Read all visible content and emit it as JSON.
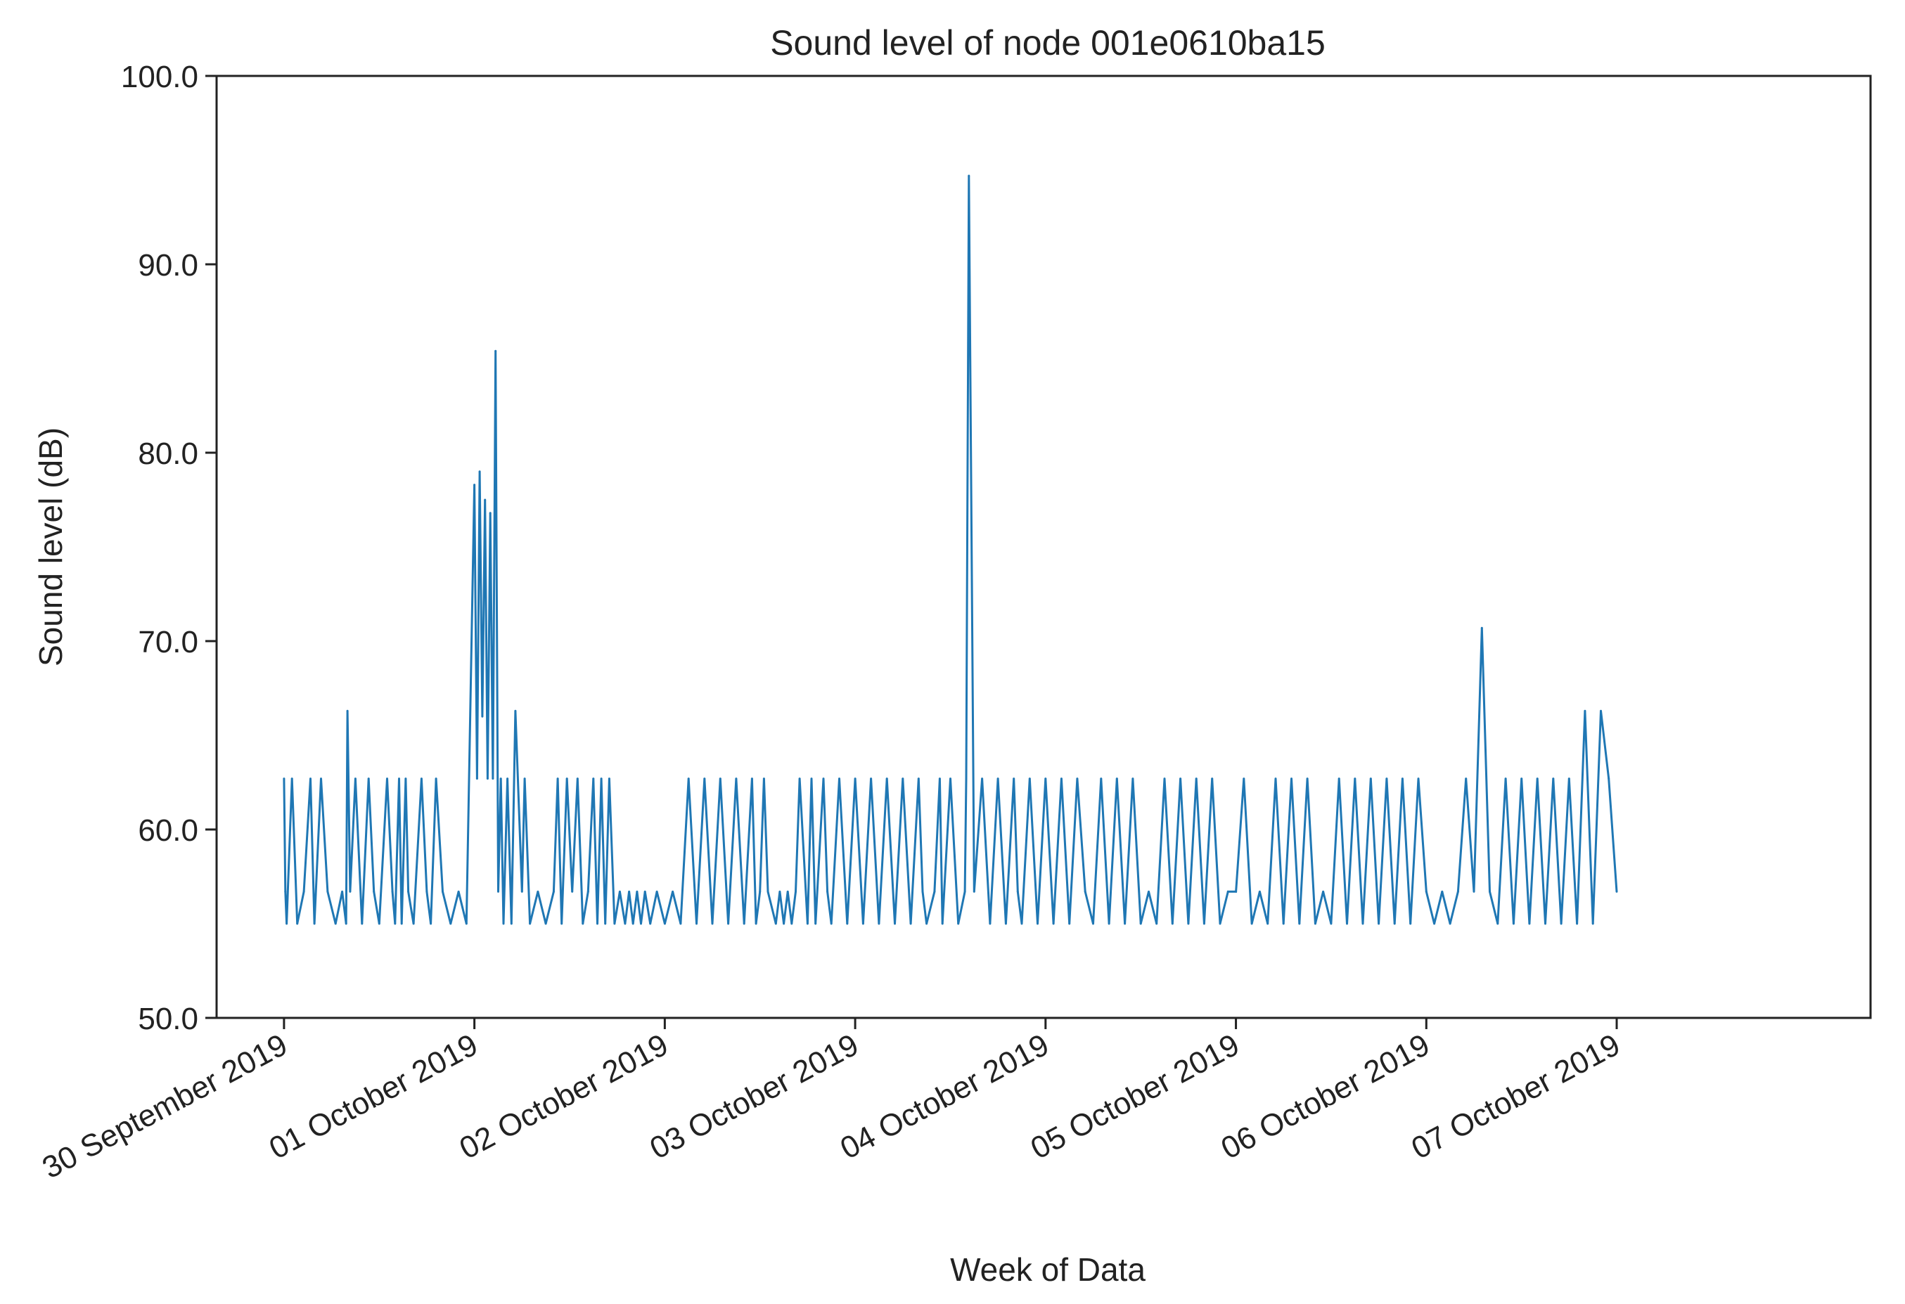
{
  "chart_data": {
    "type": "line",
    "title": "Sound level of node 001e0610ba15",
    "xlabel": "Week of Data",
    "ylabel": "Sound level (dB)",
    "ylim": [
      50,
      100
    ],
    "yticks": [
      {
        "value": 100,
        "label": "100.0"
      },
      {
        "value": 90,
        "label": "90.0"
      },
      {
        "value": 80,
        "label": "80.0"
      },
      {
        "value": 70,
        "label": "70.0"
      },
      {
        "value": 60,
        "label": "60.0"
      },
      {
        "value": 50,
        "label": "50.0"
      }
    ],
    "xlim": [
      "2019-09-29T15:30",
      "2019-10-08T08:00"
    ],
    "xticks": [
      {
        "value": "2019-09-30T00:00",
        "label": "30 September 2019"
      },
      {
        "value": "2019-10-01T00:00",
        "label": "01 October 2019"
      },
      {
        "value": "2019-10-02T00:00",
        "label": "02 October 2019"
      },
      {
        "value": "2019-10-03T00:00",
        "label": "03 October 2019"
      },
      {
        "value": "2019-10-04T00:00",
        "label": "04 October 2019"
      },
      {
        "value": "2019-10-05T00:00",
        "label": "05 October 2019"
      },
      {
        "value": "2019-10-06T00:00",
        "label": "06 October 2019"
      },
      {
        "value": "2019-10-07T00:00",
        "label": "07 October 2019"
      }
    ],
    "grid": false,
    "series": [
      {
        "color": "#1f77b4",
        "x": [
          "2019-09-30T00:00",
          "2019-09-30T00:10",
          "2019-09-30T00:20",
          "2019-09-30T01:00",
          "2019-09-30T01:40",
          "2019-09-30T02:30",
          "2019-09-30T03:20",
          "2019-09-30T03:50",
          "2019-09-30T04:40",
          "2019-09-30T05:30",
          "2019-09-30T06:30",
          "2019-09-30T07:20",
          "2019-09-30T07:50",
          "2019-09-30T08:00",
          "2019-09-30T08:20",
          "2019-09-30T09:00",
          "2019-09-30T09:50",
          "2019-09-30T10:40",
          "2019-09-30T11:20",
          "2019-09-30T12:00",
          "2019-09-30T13:00",
          "2019-09-30T13:40",
          "2019-09-30T14:00",
          "2019-09-30T14:30",
          "2019-09-30T14:50",
          "2019-09-30T15:20",
          "2019-09-30T15:40",
          "2019-09-30T16:20",
          "2019-09-30T17:20",
          "2019-09-30T18:00",
          "2019-09-30T18:30",
          "2019-09-30T19:10",
          "2019-09-30T20:00",
          "2019-09-30T21:00",
          "2019-09-30T22:00",
          "2019-09-30T23:00",
          "2019-10-01T00:00",
          "2019-10-01T00:20",
          "2019-10-01T00:40",
          "2019-10-01T01:00",
          "2019-10-01T01:20",
          "2019-10-01T01:40",
          "2019-10-01T02:00",
          "2019-10-01T02:20",
          "2019-10-01T02:40",
          "2019-10-01T03:00",
          "2019-10-01T03:20",
          "2019-10-01T03:40",
          "2019-10-01T04:10",
          "2019-10-01T04:40",
          "2019-10-01T05:10",
          "2019-10-01T06:00",
          "2019-10-01T06:20",
          "2019-10-01T07:00",
          "2019-10-01T08:00",
          "2019-10-01T09:00",
          "2019-10-01T10:00",
          "2019-10-01T10:30",
          "2019-10-01T11:00",
          "2019-10-01T11:40",
          "2019-10-01T12:20",
          "2019-10-01T13:00",
          "2019-10-01T13:40",
          "2019-10-01T14:20",
          "2019-10-01T15:00",
          "2019-10-01T15:30",
          "2019-10-01T16:00",
          "2019-10-01T16:30",
          "2019-10-01T17:00",
          "2019-10-01T17:40",
          "2019-10-01T18:20",
          "2019-10-01T19:00",
          "2019-10-01T19:30",
          "2019-10-01T20:00",
          "2019-10-01T20:30",
          "2019-10-01T21:00",
          "2019-10-01T21:30",
          "2019-10-01T22:10",
          "2019-10-01T23:00",
          "2019-10-02T00:00",
          "2019-10-02T01:00",
          "2019-10-02T02:00",
          "2019-10-02T03:00",
          "2019-10-02T04:00",
          "2019-10-02T05:00",
          "2019-10-02T06:00",
          "2019-10-02T07:00",
          "2019-10-02T08:00",
          "2019-10-02T09:00",
          "2019-10-02T10:00",
          "2019-10-02T11:00",
          "2019-10-02T11:30",
          "2019-10-02T12:00",
          "2019-10-02T12:30",
          "2019-10-02T13:00",
          "2019-10-02T14:00",
          "2019-10-02T14:30",
          "2019-10-02T15:00",
          "2019-10-02T15:30",
          "2019-10-02T16:00",
          "2019-10-02T16:30",
          "2019-10-02T17:00",
          "2019-10-02T18:00",
          "2019-10-02T18:30",
          "2019-10-02T19:00",
          "2019-10-02T20:00",
          "2019-10-02T20:30",
          "2019-10-02T21:00",
          "2019-10-02T22:00",
          "2019-10-02T23:00",
          "2019-10-03T00:00",
          "2019-10-03T01:00",
          "2019-10-03T02:00",
          "2019-10-03T03:00",
          "2019-10-03T04:00",
          "2019-10-03T05:00",
          "2019-10-03T06:00",
          "2019-10-03T07:00",
          "2019-10-03T08:00",
          "2019-10-03T08:30",
          "2019-10-03T09:00",
          "2019-10-03T10:00",
          "2019-10-03T10:40",
          "2019-10-03T11:00",
          "2019-10-03T12:00",
          "2019-10-03T13:00",
          "2019-10-03T13:50",
          "2019-10-03T14:00",
          "2019-10-03T14:20",
          "2019-10-03T15:00",
          "2019-10-03T16:00",
          "2019-10-03T17:00",
          "2019-10-03T18:00",
          "2019-10-03T19:00",
          "2019-10-03T20:00",
          "2019-10-03T20:30",
          "2019-10-03T21:00",
          "2019-10-03T22:00",
          "2019-10-03T23:00",
          "2019-10-04T00:00",
          "2019-10-04T01:00",
          "2019-10-04T02:00",
          "2019-10-04T03:00",
          "2019-10-04T04:00",
          "2019-10-04T05:00",
          "2019-10-04T06:00",
          "2019-10-04T07:00",
          "2019-10-04T08:00",
          "2019-10-04T09:00",
          "2019-10-04T10:00",
          "2019-10-04T11:00",
          "2019-10-04T12:00",
          "2019-10-04T13:00",
          "2019-10-04T14:00",
          "2019-10-04T15:00",
          "2019-10-04T16:00",
          "2019-10-04T17:00",
          "2019-10-04T18:00",
          "2019-10-04T19:00",
          "2019-10-04T20:00",
          "2019-10-04T21:00",
          "2019-10-04T22:00",
          "2019-10-04T23:00",
          "2019-10-05T00:00",
          "2019-10-05T01:00",
          "2019-10-05T02:00",
          "2019-10-05T03:00",
          "2019-10-05T04:00",
          "2019-10-05T05:00",
          "2019-10-05T06:00",
          "2019-10-05T07:00",
          "2019-10-05T08:00",
          "2019-10-05T09:00",
          "2019-10-05T10:00",
          "2019-10-05T11:00",
          "2019-10-05T12:00",
          "2019-10-05T13:00",
          "2019-10-05T14:00",
          "2019-10-05T15:00",
          "2019-10-05T16:00",
          "2019-10-05T17:00",
          "2019-10-05T18:00",
          "2019-10-05T19:00",
          "2019-10-05T20:00",
          "2019-10-05T21:00",
          "2019-10-05T22:00",
          "2019-10-05T23:00",
          "2019-10-06T00:00",
          "2019-10-06T01:00",
          "2019-10-06T02:00",
          "2019-10-06T03:00",
          "2019-10-06T04:00",
          "2019-10-06T05:00",
          "2019-10-06T06:00",
          "2019-10-06T07:00",
          "2019-10-06T08:00",
          "2019-10-06T09:00",
          "2019-10-06T10:00",
          "2019-10-06T11:00",
          "2019-10-06T12:00",
          "2019-10-06T13:00",
          "2019-10-06T14:00",
          "2019-10-06T15:00",
          "2019-10-06T16:00",
          "2019-10-06T17:00",
          "2019-10-06T18:00",
          "2019-10-06T19:00",
          "2019-10-06T20:00",
          "2019-10-06T21:00",
          "2019-10-06T22:00",
          "2019-10-06T23:00",
          "2019-10-07T00:00"
        ],
        "y": [
          62.7,
          56.7,
          55.0,
          62.7,
          55.0,
          56.7,
          62.7,
          55.0,
          62.7,
          56.7,
          55.0,
          56.7,
          55.0,
          66.3,
          56.7,
          62.7,
          55.0,
          62.7,
          56.7,
          55.0,
          62.7,
          56.7,
          55.0,
          62.7,
          55.0,
          62.7,
          56.7,
          55.0,
          62.7,
          56.7,
          55.0,
          62.7,
          56.7,
          55.0,
          56.7,
          55.0,
          78.3,
          62.7,
          79.0,
          66.0,
          77.5,
          62.7,
          76.8,
          62.7,
          85.4,
          56.7,
          62.7,
          55.0,
          62.7,
          55.0,
          66.3,
          56.7,
          62.7,
          55.0,
          56.7,
          55.0,
          56.7,
          62.7,
          55.0,
          62.7,
          56.7,
          62.7,
          55.0,
          56.7,
          62.7,
          55.0,
          62.7,
          55.0,
          62.7,
          55.0,
          56.7,
          55.0,
          56.7,
          55.0,
          56.7,
          55.0,
          56.7,
          55.0,
          56.7,
          55.0,
          56.7,
          55.0,
          62.7,
          55.0,
          62.7,
          55.0,
          62.7,
          55.0,
          62.7,
          55.0,
          62.7,
          55.0,
          56.7,
          62.7,
          56.7,
          55.0,
          56.7,
          55.0,
          56.7,
          55.0,
          56.7,
          62.7,
          55.0,
          62.7,
          55.0,
          62.7,
          56.7,
          55.0,
          62.7,
          55.0,
          62.7,
          55.0,
          62.7,
          55.0,
          62.7,
          55.0,
          62.7,
          55.0,
          62.7,
          56.7,
          55.0,
          56.7,
          62.7,
          55.0,
          62.7,
          55.0,
          56.7,
          62.7,
          94.7,
          56.7,
          62.7,
          55.0,
          62.7,
          55.0,
          62.7,
          56.7,
          55.0,
          62.7,
          55.0,
          62.7,
          55.0,
          62.7,
          55.0,
          62.7,
          56.7,
          55.0,
          62.7,
          55.0,
          62.7,
          55.0,
          62.7,
          55.0,
          56.7,
          55.0,
          62.7,
          55.0,
          62.7,
          55.0,
          62.7,
          55.0,
          62.7,
          55.0,
          56.7,
          56.7,
          62.7,
          55.0,
          56.7,
          55.0,
          62.7,
          55.0,
          62.7,
          55.0,
          62.7,
          55.0,
          56.7,
          55.0,
          62.7,
          55.0,
          62.7,
          55.0,
          62.7,
          55.0,
          62.7,
          55.0,
          62.7,
          55.0,
          62.7,
          56.7,
          55.0,
          56.7,
          55.0,
          56.7,
          62.7,
          56.7,
          70.7,
          56.7,
          55.0,
          62.7,
          55.0,
          62.7,
          55.0,
          62.7,
          55.0,
          62.7,
          55.0,
          62.7,
          55.0,
          66.3,
          55.0,
          66.3,
          62.7,
          56.7
        ]
      }
    ]
  }
}
